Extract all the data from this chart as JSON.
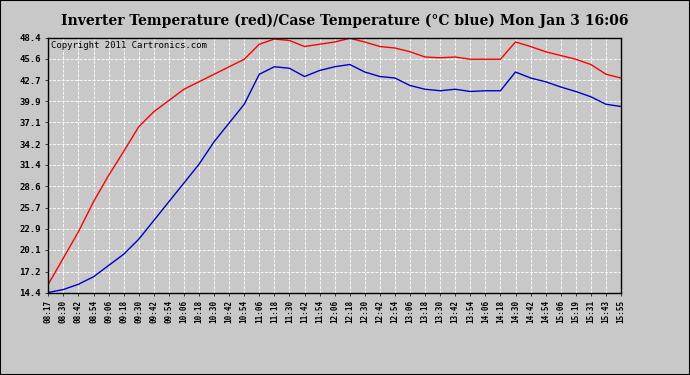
{
  "title": "Inverter Temperature (red)/Case Temperature (°C blue) Mon Jan 3 16:06",
  "copyright": "Copyright 2011 Cartronics.com",
  "yticks": [
    14.4,
    17.2,
    20.1,
    22.9,
    25.7,
    28.6,
    31.4,
    34.2,
    37.1,
    39.9,
    42.7,
    45.6,
    48.4
  ],
  "xtick_labels": [
    "08:17",
    "08:30",
    "08:42",
    "08:54",
    "09:06",
    "09:18",
    "09:30",
    "09:42",
    "09:54",
    "10:06",
    "10:18",
    "10:30",
    "10:42",
    "10:54",
    "11:06",
    "11:18",
    "11:30",
    "11:42",
    "11:54",
    "12:06",
    "12:18",
    "12:30",
    "12:42",
    "12:54",
    "13:06",
    "13:18",
    "13:30",
    "13:42",
    "13:54",
    "14:06",
    "14:18",
    "14:30",
    "14:42",
    "14:54",
    "15:06",
    "15:19",
    "15:31",
    "15:43",
    "15:55"
  ],
  "red_data": [
    15.5,
    19.0,
    22.5,
    26.5,
    30.0,
    33.2,
    36.5,
    38.5,
    40.0,
    41.5,
    42.5,
    43.5,
    44.5,
    45.5,
    47.5,
    48.2,
    48.0,
    47.2,
    47.5,
    47.8,
    48.3,
    47.8,
    47.2,
    47.0,
    46.5,
    45.8,
    45.7,
    45.8,
    45.5,
    45.5,
    45.5,
    47.8,
    47.2,
    46.5,
    46.0,
    45.5,
    44.8,
    43.5,
    43.0
  ],
  "blue_data": [
    14.4,
    14.8,
    15.5,
    16.5,
    18.0,
    19.5,
    21.5,
    24.0,
    26.5,
    29.0,
    31.5,
    34.5,
    37.0,
    39.5,
    43.5,
    44.5,
    44.3,
    43.2,
    44.0,
    44.5,
    44.8,
    43.8,
    43.2,
    43.0,
    42.0,
    41.5,
    41.3,
    41.5,
    41.2,
    41.3,
    41.3,
    43.8,
    43.0,
    42.5,
    41.8,
    41.2,
    40.5,
    39.5,
    39.2
  ],
  "ymin": 14.4,
  "ymax": 48.4,
  "fig_bg_color": "#c8c8c8",
  "plot_bg_color": "#c8c8c8",
  "grid_color": "#ffffff",
  "red_color": "#ff0000",
  "blue_color": "#0000cc",
  "title_fontsize": 10,
  "copyright_fontsize": 6.5
}
